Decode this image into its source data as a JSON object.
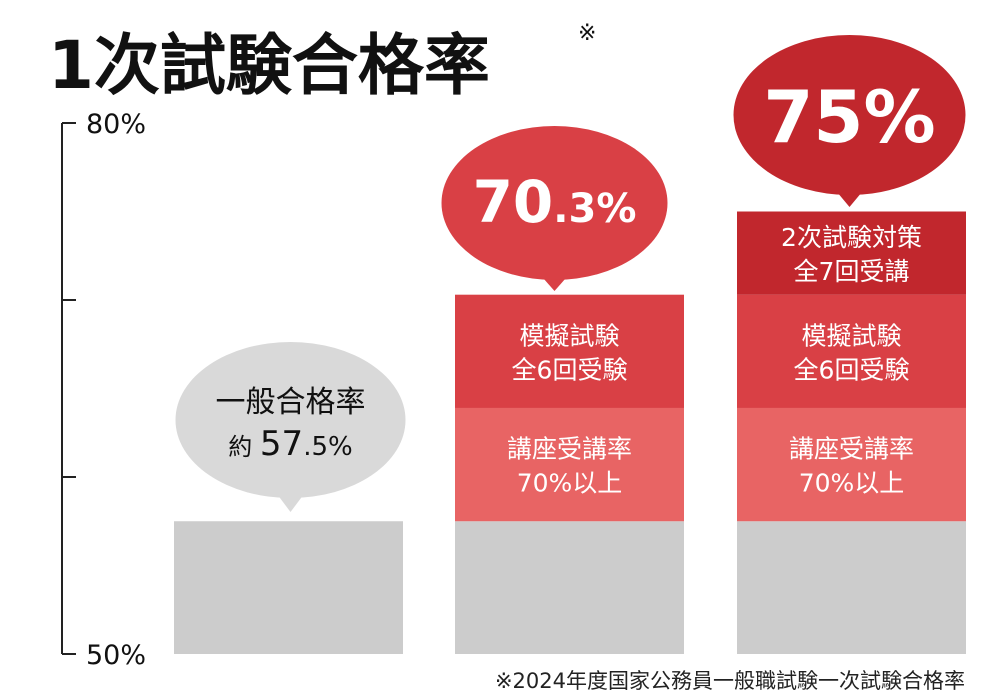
{
  "title": "1次試験合格率",
  "title_mark": "※",
  "footnote": "※2024年度国家公務員一般職試験一次試験合格率",
  "colors": {
    "gray_bubble": "#d9d9d9",
    "gray_bar": "#cccccc",
    "red_light": "#e86464",
    "red_mid": "#d94045",
    "red_dark": "#c1272d",
    "axis": "#222222",
    "text_dark": "#111111",
    "text_white": "#ffffff"
  },
  "chart_data": {
    "type": "bar",
    "stacked": true,
    "title": "1次試験合格率",
    "ylim": [
      50,
      80
    ],
    "y_tick_labels": [
      "80%",
      "50%"
    ],
    "y_ticks": [
      50,
      60,
      70,
      80
    ],
    "grid": false,
    "bars": [
      {
        "name": "general",
        "total": 57.5,
        "callout": {
          "lines": [
            "一般合格率"
          ],
          "prefix": "約",
          "value_main": "57",
          "value_decimal": ".5%"
        },
        "segments": [
          {
            "from": 50,
            "to": 57.5,
            "color": "gray_bar",
            "lines": []
          }
        ]
      },
      {
        "name": "mock-exams",
        "total": 70.3,
        "callout": {
          "value_main": "70",
          "value_decimal": ".3%"
        },
        "segments": [
          {
            "from": 50,
            "to": 57.5,
            "color": "gray_bar",
            "lines": []
          },
          {
            "from": 57.5,
            "to": 63.9,
            "color": "red_light",
            "lines": [
              "講座受講率",
              "70%以上"
            ]
          },
          {
            "from": 63.9,
            "to": 70.3,
            "color": "red_mid",
            "lines": [
              "模擬試験",
              "全6回受験"
            ]
          }
        ]
      },
      {
        "name": "full-course",
        "total": 75,
        "callout": {
          "value_main": "75%",
          "value_decimal": ""
        },
        "segments": [
          {
            "from": 50,
            "to": 57.5,
            "color": "gray_bar",
            "lines": []
          },
          {
            "from": 57.5,
            "to": 63.9,
            "color": "red_light",
            "lines": [
              "講座受講率",
              "70%以上"
            ]
          },
          {
            "from": 63.9,
            "to": 70.3,
            "color": "red_mid",
            "lines": [
              "模擬試験",
              "全6回受験"
            ]
          },
          {
            "from": 70.3,
            "to": 75,
            "color": "red_dark",
            "lines": [
              "2次試験対策",
              "全7回受講"
            ]
          }
        ]
      }
    ]
  }
}
